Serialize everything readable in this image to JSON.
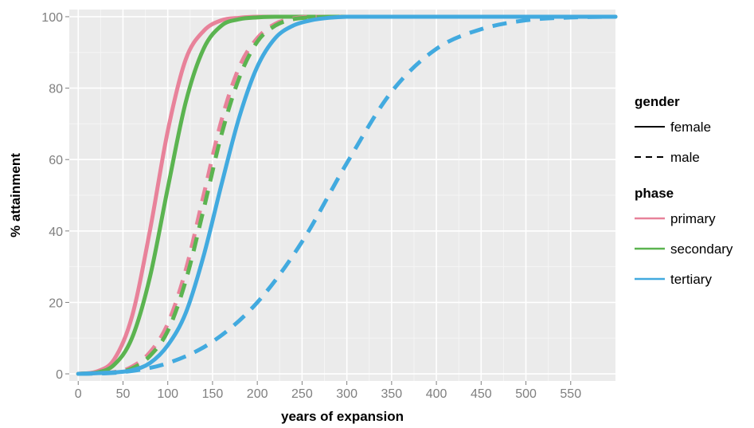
{
  "chart_data": {
    "type": "line",
    "xlabel": "years of expansion",
    "ylabel": "% attainment",
    "xlim": [
      -10,
      600
    ],
    "ylim": [
      -2,
      102
    ],
    "x_ticks": [
      0,
      50,
      100,
      150,
      200,
      250,
      300,
      350,
      400,
      450,
      500,
      550
    ],
    "y_ticks": [
      0,
      20,
      40,
      60,
      80,
      100
    ],
    "grid": true,
    "legend_position": "right",
    "legend": {
      "gender_title": "gender",
      "gender_items": [
        {
          "label": "female",
          "style": "solid"
        },
        {
          "label": "male",
          "style": "dashed"
        }
      ],
      "phase_title": "phase",
      "phase_items": [
        {
          "label": "primary",
          "color": "#E8829A"
        },
        {
          "label": "secondary",
          "color": "#5BB450"
        },
        {
          "label": "tertiary",
          "color": "#42AADF"
        }
      ]
    },
    "series": [
      {
        "phase": "primary",
        "gender": "female",
        "color": "#E8829A",
        "style": "solid",
        "x": [
          0,
          20,
          40,
          60,
          80,
          100,
          120,
          140,
          160,
          180,
          200,
          260,
          600
        ],
        "y": [
          0,
          0.6,
          4,
          16,
          40,
          68,
          88,
          96,
          99,
          99.7,
          100,
          100,
          100
        ]
      },
      {
        "phase": "secondary",
        "gender": "female",
        "color": "#5BB450",
        "style": "solid",
        "x": [
          0,
          20,
          40,
          60,
          80,
          100,
          120,
          140,
          160,
          180,
          200,
          220,
          280,
          600
        ],
        "y": [
          0,
          0.3,
          2.5,
          10,
          27,
          52,
          76,
          91,
          97.5,
          99.3,
          99.8,
          100,
          100,
          100
        ]
      },
      {
        "phase": "primary",
        "gender": "male",
        "color": "#E8829A",
        "style": "dashed",
        "x": [
          0,
          40,
          60,
          80,
          100,
          120,
          140,
          160,
          180,
          200,
          220,
          240,
          260,
          300,
          600
        ],
        "y": [
          0,
          0.5,
          2,
          6,
          14,
          29,
          50,
          71,
          86,
          94,
          98,
          99.5,
          100,
          100,
          100
        ]
      },
      {
        "phase": "secondary",
        "gender": "male",
        "color": "#5BB450",
        "style": "dashed",
        "x": [
          0,
          40,
          60,
          80,
          100,
          120,
          140,
          160,
          180,
          200,
          220,
          240,
          260,
          280,
          320,
          600
        ],
        "y": [
          0,
          0.4,
          1.5,
          5,
          12,
          26,
          46,
          67,
          83,
          93,
          97.5,
          99.3,
          99.8,
          100,
          100,
          100
        ]
      },
      {
        "phase": "tertiary",
        "gender": "female",
        "color": "#42AADF",
        "style": "solid",
        "x": [
          0,
          40,
          60,
          80,
          100,
          120,
          140,
          160,
          180,
          200,
          220,
          240,
          260,
          280,
          300,
          340,
          600
        ],
        "y": [
          0,
          0.4,
          1,
          3,
          8,
          17,
          33,
          53,
          72,
          86,
          94,
          97.5,
          99,
          99.7,
          100,
          100,
          100
        ]
      },
      {
        "phase": "tertiary",
        "gender": "male",
        "color": "#42AADF",
        "style": "dashed",
        "x": [
          0,
          50,
          100,
          150,
          200,
          250,
          300,
          350,
          400,
          450,
          500,
          550,
          600
        ],
        "y": [
          0,
          0.5,
          3,
          9,
          20,
          37,
          59,
          79,
          91,
          96.5,
          99,
          99.8,
          100
        ]
      }
    ]
  }
}
